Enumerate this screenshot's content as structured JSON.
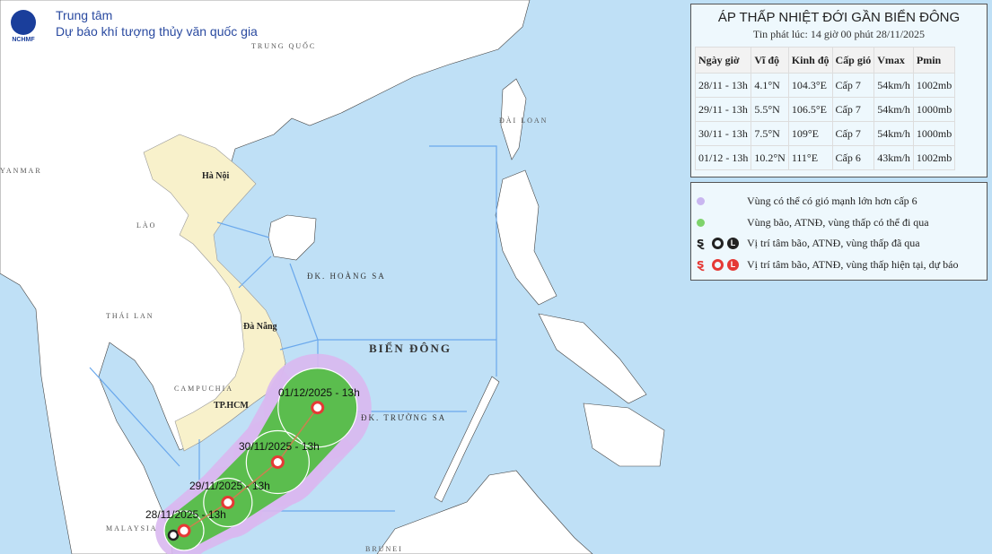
{
  "header": {
    "org_line1": "Trung tâm",
    "org_line2": "Dự báo khí tượng thủy văn quốc gia",
    "logo_text": "NCHMF"
  },
  "map": {
    "countries": [
      "TRUNG QUỐC",
      "YANMAR",
      "LÀO",
      "THÁI LAN",
      "CAMPUCHIA",
      "ĐÀI LOAN",
      "MALAYSIA",
      "BRUNEI"
    ],
    "cities": [
      "Hà Nội",
      "Đà Nẵng",
      "TP.HCM"
    ],
    "seas": [
      "BIỂN ĐÔNG",
      "ĐK. HOÀNG SA",
      "ĐK. TRƯỜNG SA"
    ],
    "colors": {
      "sea": "#bfe0f6",
      "land": "#ffffff",
      "vietnam": "#f8f1cb",
      "boundary": "#6aa8ec",
      "cone_green": "#5bbd4e",
      "cone_purple": "#d9b8f0",
      "track": "#c9824f",
      "marker_red": "#e53935",
      "marker_past": "#222222"
    }
  },
  "track": [
    {
      "label": "28/11/2025 - 13h",
      "lat": 4.1,
      "lon": 104.3
    },
    {
      "label": "29/11/2025 - 13h",
      "lat": 5.5,
      "lon": 106.5
    },
    {
      "label": "30/11/2025 - 13h",
      "lat": 7.5,
      "lon": 109
    },
    {
      "label": "01/12/2025 - 13h",
      "lat": 10.2,
      "lon": 111
    }
  ],
  "info": {
    "title": "ÁP THẤP NHIỆT ĐỚI GẦN BIỂN ĐÔNG",
    "issued": "Tin phát lúc: 14 giờ 00 phút 28/11/2025",
    "columns": [
      "Ngày giờ",
      "Vĩ độ",
      "Kinh độ",
      "Cấp gió",
      "Vmax",
      "Pmin"
    ],
    "rows": [
      [
        "28/11 - 13h",
        "4.1°N",
        "104.3°E",
        "Cấp 7",
        "54km/h",
        "1002mb"
      ],
      [
        "29/11 - 13h",
        "5.5°N",
        "106.5°E",
        "Cấp 7",
        "54km/h",
        "1000mb"
      ],
      [
        "30/11 - 13h",
        "7.5°N",
        "109°E",
        "Cấp 7",
        "54km/h",
        "1000mb"
      ],
      [
        "01/12 - 13h",
        "10.2°N",
        "111°E",
        "Cấp 6",
        "43km/h",
        "1002mb"
      ]
    ]
  },
  "legend": [
    {
      "icon": "purple-dot-icon",
      "text": "Vùng có thể có gió mạnh lớn hơn cấp 6"
    },
    {
      "icon": "green-dot-icon",
      "text": "Vùng bão, ATNĐ, vùng thấp có thể đi qua"
    },
    {
      "icon": "past-position-icons",
      "text": "Vị trí tâm bão, ATNĐ, vùng thấp đã qua"
    },
    {
      "icon": "forecast-position-icons",
      "text": "Vị trí tâm bão, ATNĐ, vùng thấp hiện tại, dự báo"
    }
  ]
}
